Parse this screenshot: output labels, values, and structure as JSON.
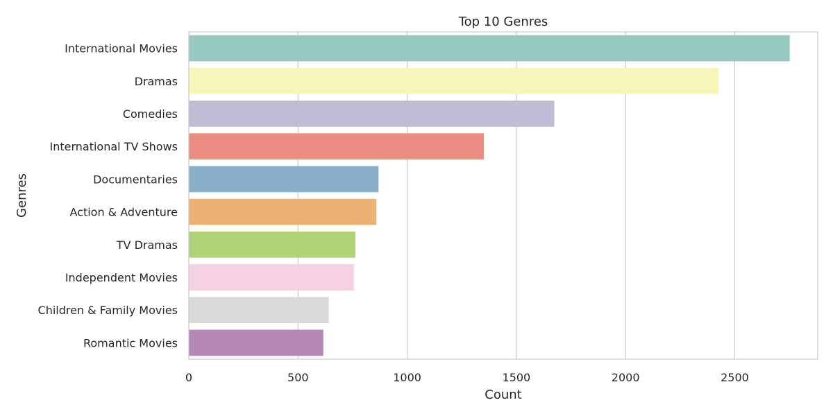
{
  "chart_data": {
    "type": "bar",
    "orientation": "horizontal",
    "title": "Top 10 Genres",
    "xlabel": "Count",
    "ylabel": "Genres",
    "xlim": [
      0,
      2880
    ],
    "xticks": [
      0,
      500,
      1000,
      1500,
      2000,
      2500
    ],
    "grid": true,
    "categories": [
      "International Movies",
      "Dramas",
      "Comedies",
      "International TV Shows",
      "Documentaries",
      "Action & Adventure",
      "TV Dramas",
      "Independent Movies",
      "Children & Family Movies",
      "Romantic Movies"
    ],
    "values": [
      2752,
      2427,
      1674,
      1351,
      869,
      859,
      763,
      756,
      641,
      616
    ],
    "colors": [
      "#96c9bf",
      "#f6f6b9",
      "#c0bcd6",
      "#eb8d83",
      "#8aafc9",
      "#ebb274",
      "#afd177",
      "#f5d1e3",
      "#d9d9d9",
      "#b688b8"
    ]
  }
}
